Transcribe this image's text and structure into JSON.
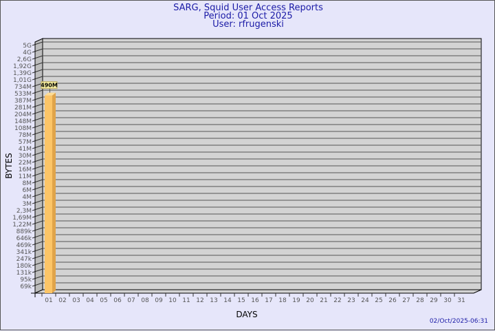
{
  "header": {
    "title": "SARG, Squid User Access Reports",
    "period": "Period: 01 Oct 2025",
    "user": "User: rfrugenski"
  },
  "footer": {
    "timestamp": "02/Oct/2025-06:31"
  },
  "chart_data": {
    "type": "bar",
    "xlabel": "DAYS",
    "ylabel": "BYTES",
    "y_scale": "log",
    "y_tick_labels": [
      "69k",
      "95k",
      "131k",
      "180k",
      "247k",
      "341k",
      "469k",
      "646k",
      "889k",
      "1,22M",
      "1,69M",
      "2,3M",
      "3M",
      "4M",
      "6M",
      "8M",
      "11M",
      "16M",
      "22M",
      "30M",
      "41M",
      "57M",
      "78M",
      "108M",
      "148M",
      "204M",
      "281M",
      "387M",
      "533M",
      "734M",
      "1,01G",
      "1,39G",
      "1,92G",
      "2,6G",
      "4G",
      "5G"
    ],
    "categories": [
      "01",
      "02",
      "03",
      "04",
      "05",
      "06",
      "07",
      "08",
      "09",
      "10",
      "11",
      "12",
      "13",
      "14",
      "15",
      "16",
      "17",
      "18",
      "19",
      "20",
      "21",
      "22",
      "23",
      "24",
      "25",
      "26",
      "27",
      "28",
      "29",
      "30",
      "31"
    ],
    "values": [
      {
        "day": "01",
        "value": 490000000,
        "label": "490M"
      }
    ],
    "grid": true,
    "colors": {
      "bar_front": "#fcc567",
      "bar_side": "#e0a44a",
      "wall": "#d3d3d3",
      "side_wall": "#bdbdbd"
    }
  }
}
